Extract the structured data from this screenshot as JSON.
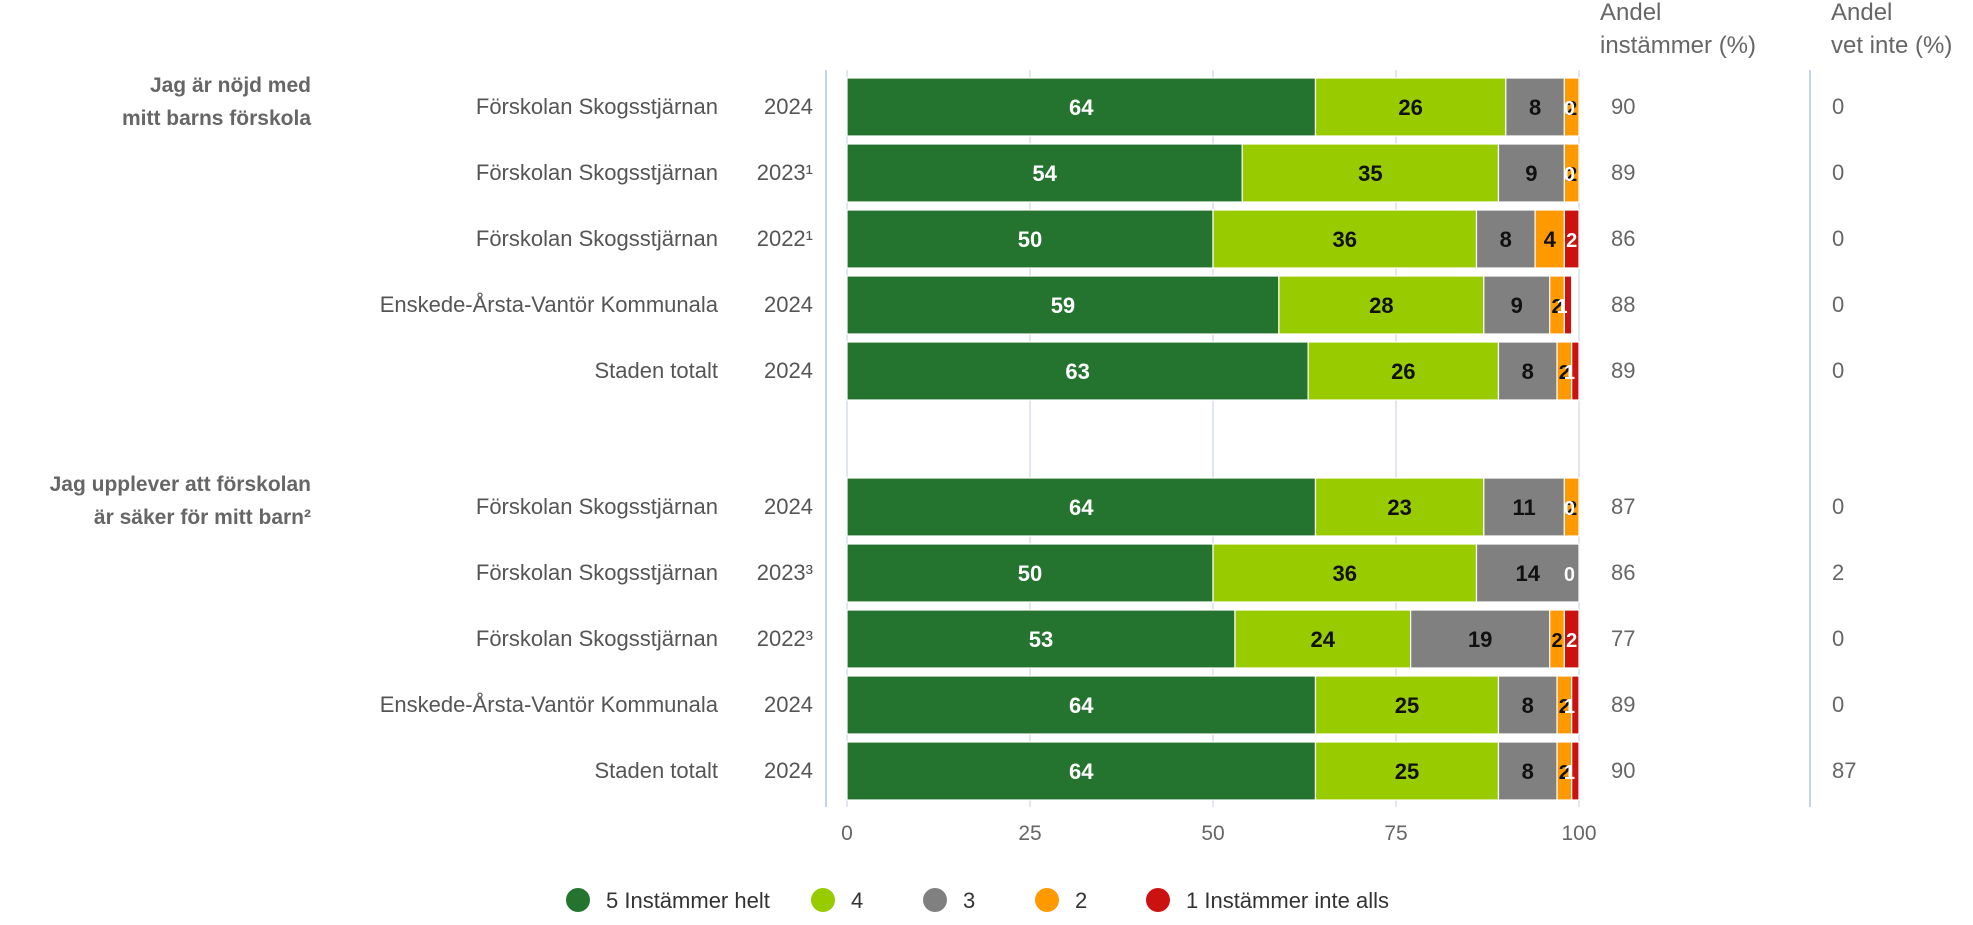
{
  "chart_data": {
    "type": "bar",
    "orientation": "horizontal",
    "stacked": true,
    "xlim": [
      0,
      100
    ],
    "x_ticks": [
      "0",
      "25",
      "50",
      "75",
      "100"
    ],
    "grid": true,
    "legend_placement": "bottom-center",
    "column_headers": {
      "agree_line1": "Andel",
      "agree_line2": "instämmer (%)",
      "dk_line1": "Andel",
      "dk_line2": "vet inte (%)"
    },
    "series": [
      {
        "name": "5 Instämmer helt",
        "color": "#24742f",
        "label_color": "#ffffff"
      },
      {
        "name": "4",
        "color": "#99cc00",
        "label_color": "#111111"
      },
      {
        "name": "3",
        "color": "#808080",
        "label_color": "#111111"
      },
      {
        "name": "2",
        "color": "#ff9900",
        "label_color": "#111111"
      },
      {
        "name": "1 Instämmer inte alls",
        "color": "#cc1111",
        "label_color": "#ffffff"
      }
    ],
    "groups": [
      {
        "question_lines": [
          "Jag är nöjd med",
          "mitt barns förskola"
        ],
        "rows": [
          {
            "unit": "Förskolan Skogsstjärnan",
            "year": "2024",
            "values": [
              64,
              26,
              8,
              2,
              0
            ],
            "labels": [
              "64",
              "26",
              "8",
              "2",
              "0"
            ],
            "agree": "90",
            "dont_know": "0"
          },
          {
            "unit": "Förskolan Skogsstjärnan",
            "year": "2023¹",
            "values": [
              54,
              35,
              9,
              2,
              0
            ],
            "labels": [
              "54",
              "35",
              "9",
              "2",
              "0"
            ],
            "agree": "89",
            "dont_know": "0"
          },
          {
            "unit": "Förskolan Skogsstjärnan",
            "year": "2022¹",
            "values": [
              50,
              36,
              8,
              4,
              2
            ],
            "labels": [
              "50",
              "36",
              "8",
              "4",
              "2"
            ],
            "agree": "86",
            "dont_know": "0"
          },
          {
            "unit": "Enskede-Årsta-Vantör Kommunala",
            "year": "2024",
            "values": [
              59,
              28,
              9,
              2,
              1
            ],
            "labels": [
              "59",
              "28",
              "9",
              "2",
              "1"
            ],
            "agree": "88",
            "dont_know": "0"
          },
          {
            "unit": "Staden totalt",
            "year": "2024",
            "values": [
              63,
              26,
              8,
              2,
              1
            ],
            "labels": [
              "63",
              "26",
              "8",
              "2",
              "1"
            ],
            "agree": "89",
            "dont_know": "0"
          }
        ]
      },
      {
        "question_lines": [
          "Jag upplever att förskolan",
          "är säker för mitt barn²"
        ],
        "rows": [
          {
            "unit": "Förskolan Skogsstjärnan",
            "year": "2024",
            "values": [
              64,
              23,
              11,
              2,
              0
            ],
            "labels": [
              "64",
              "23",
              "11",
              "2",
              "0"
            ],
            "agree": "87",
            "dont_know": "0"
          },
          {
            "unit": "Förskolan Skogsstjärnan",
            "year": "2023³",
            "values": [
              50,
              36,
              14,
              0,
              0
            ],
            "labels": [
              "50",
              "36",
              "14",
              "0",
              "0"
            ],
            "agree": "86",
            "dont_know": "2"
          },
          {
            "unit": "Förskolan Skogsstjärnan",
            "year": "2022³",
            "values": [
              53,
              24,
              19,
              2,
              2
            ],
            "labels": [
              "53",
              "24",
              "19",
              "2",
              "2"
            ],
            "agree": "77",
            "dont_know": "0"
          },
          {
            "unit": "Enskede-Årsta-Vantör Kommunala",
            "year": "2024",
            "values": [
              64,
              25,
              8,
              2,
              1
            ],
            "labels": [
              "64",
              "25",
              "8",
              "2",
              "1"
            ],
            "agree": "89",
            "dont_know": "0"
          },
          {
            "unit": "Staden totalt",
            "year": "2024",
            "values": [
              64,
              25,
              8,
              2,
              1
            ],
            "labels": [
              "64",
              "25",
              "8",
              "2",
              "1"
            ],
            "agree": "90",
            "dont_know": "87"
          }
        ]
      }
    ]
  }
}
